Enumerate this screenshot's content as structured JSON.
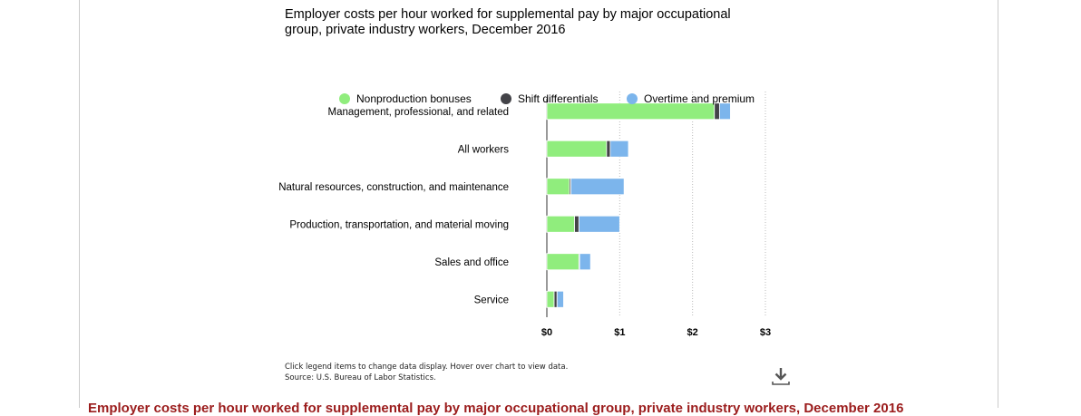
{
  "chart_data": {
    "type": "bar",
    "orientation": "horizontal",
    "stacked": true,
    "title": "Employer costs per hour worked for supplemental pay by major occupational group, private industry workers, December 2016",
    "categories": [
      "Management, professional, and related",
      "All workers",
      "Natural resources, construction, and maintenance",
      "Production, transportation, and material moving",
      "Sales and office",
      "Service"
    ],
    "series": [
      {
        "name": "Nonproduction bonuses",
        "color": "#90ed7d",
        "values": [
          2.3,
          0.82,
          0.31,
          0.38,
          0.44,
          0.1
        ]
      },
      {
        "name": "Shift differentials",
        "color": "#434348",
        "values": [
          0.07,
          0.05,
          0.02,
          0.06,
          0.01,
          0.04
        ]
      },
      {
        "name": "Overtime and premium",
        "color": "#7cb5ec",
        "values": [
          0.15,
          0.25,
          0.73,
          0.56,
          0.15,
          0.09
        ]
      }
    ],
    "xlim": [
      0,
      3
    ],
    "xticks": [
      0,
      1,
      2,
      3
    ],
    "xtick_labels": [
      "$0",
      "$1",
      "$2",
      "$3"
    ],
    "grid": "vertical dotted",
    "legend_placement": "top"
  },
  "notes": {
    "line1": "Click legend items to change data display. Hover over chart to view data.",
    "line2": "Source: U.S. Bureau of Labor Statistics."
  },
  "download_icon": "download-icon",
  "bottom_title": "Employer costs per hour worked for supplemental pay by major occupational group, private industry workers, December 2016"
}
